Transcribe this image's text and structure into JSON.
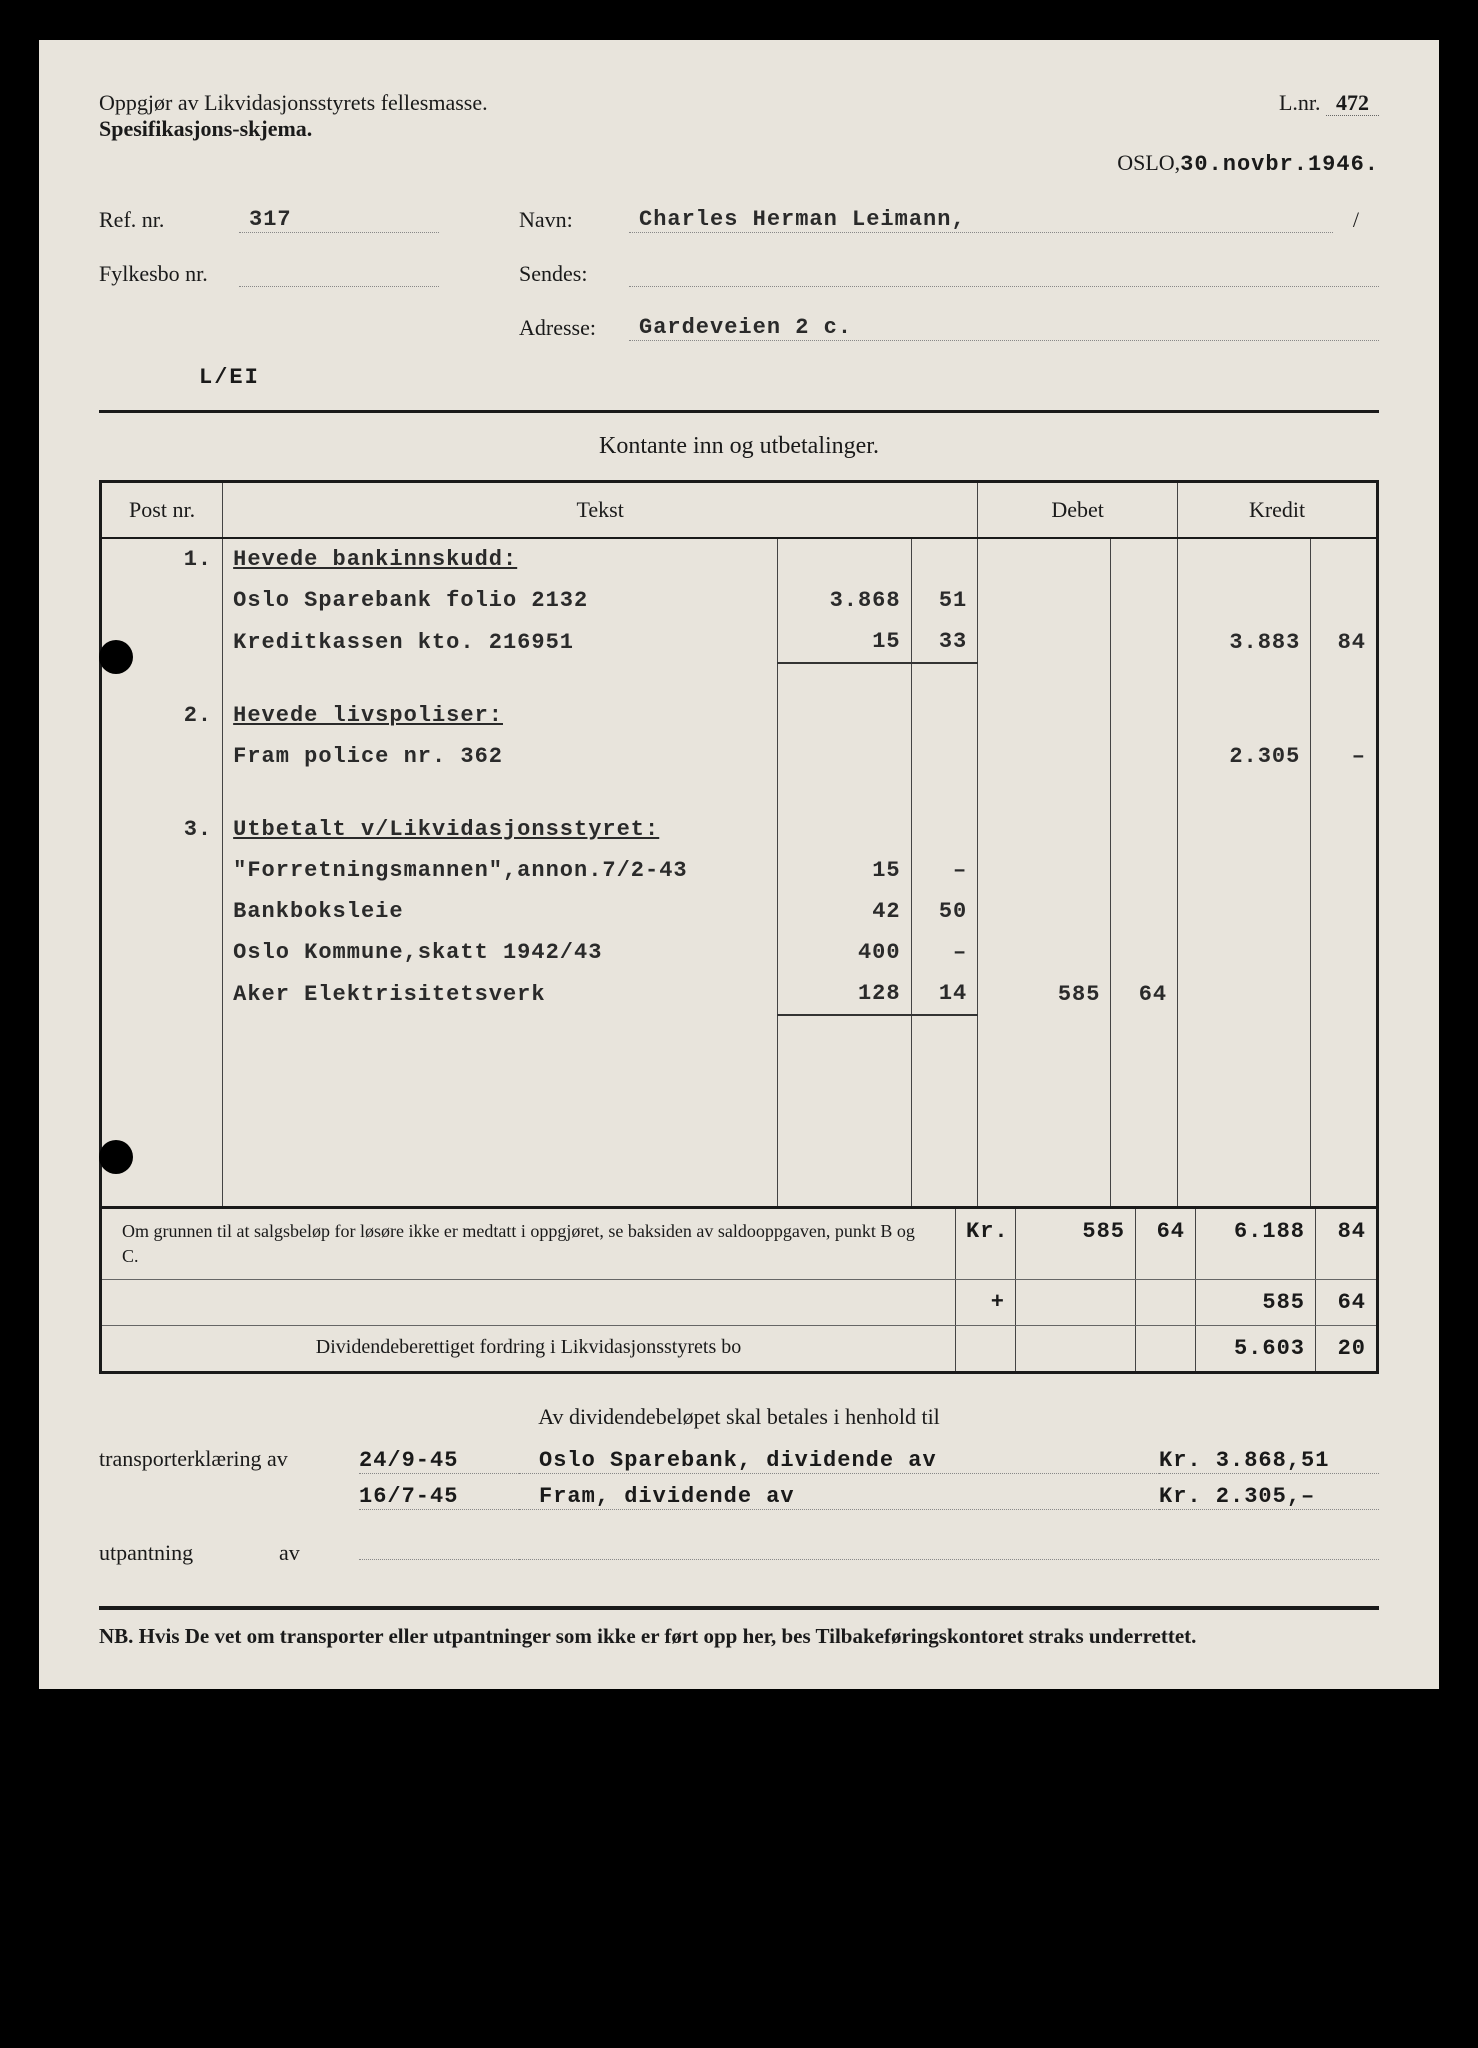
{
  "header": {
    "title1": "Oppgjør av Likvidasjonsstyrets fellesmasse.",
    "title2": "Spesifikasjons-skjema.",
    "lnr_label": "L.nr.",
    "lnr_value": "472",
    "place": "OSLO,",
    "date": "30.novbr.1946."
  },
  "info": {
    "ref_label": "Ref. nr.",
    "ref_value": "317",
    "navn_label": "Navn:",
    "navn_value": "Charles Herman Leimann,",
    "fylkesbo_label": "Fylkesbo nr.",
    "fylkesbo_value": "",
    "sendes_label": "Sendes:",
    "sendes_value": "",
    "adresse_label": "Adresse:",
    "adresse_value": "Gardeveien 2 c.",
    "code": "L/EI"
  },
  "section_title": "Kontante inn og utbetalinger.",
  "columns": {
    "post": "Post nr.",
    "tekst": "Tekst",
    "debet": "Debet",
    "kredit": "Kredit"
  },
  "rows": [
    {
      "post": "1.",
      "text": "Hevede bankinnskudd:",
      "heading": true
    },
    {
      "text": "Oslo Sparebank folio 2132",
      "a1": "3.868",
      "a1o": "51"
    },
    {
      "text": "Kreditkassen kto. 216951",
      "a1": "15",
      "a1o": "33",
      "kredit": "3.883",
      "kredito": "84",
      "sumline": true
    },
    {
      "spacer": true
    },
    {
      "post": "2.",
      "text": "Hevede livspoliser:",
      "heading": true
    },
    {
      "text": "Fram police nr. 362",
      "kredit": "2.305",
      "kredito": "–"
    },
    {
      "spacer": true
    },
    {
      "post": "3.",
      "text": "Utbetalt v/Likvidasjonsstyret:",
      "heading": true
    },
    {
      "text": "\"Forretningsmannen\",annon.7/2-43",
      "a1": "15",
      "a1o": "–"
    },
    {
      "text": "Bankboksleie",
      "a1": "42",
      "a1o": "50"
    },
    {
      "text": "Oslo Kommune,skatt 1942/43",
      "a1": "400",
      "a1o": "–"
    },
    {
      "text": "Aker Elektrisitetsverk",
      "a1": "128",
      "a1o": "14",
      "debet": "585",
      "debeto": "64",
      "sumline": true
    },
    {
      "spacer": true
    },
    {
      "spacer": true
    },
    {
      "spacer": true
    },
    {
      "spacer": true
    },
    {
      "spacer": true
    },
    {
      "spacer": true
    }
  ],
  "footer": {
    "note": "Om grunnen til at salgsbeløp for løsøre ikke er medtatt i oppgjøret, se baksiden av saldooppgaven, punkt B og C.",
    "kr": "Kr.",
    "plus": "+",
    "r1_debet": "585",
    "r1_debeto": "64",
    "r1_kredit": "6.188",
    "r1_kredito": "84",
    "r2_kredit": "585",
    "r2_kredito": "64",
    "divlabel": "Dividendeberettiget fordring i Likvidasjonsstyrets bo",
    "r3_kredit": "5.603",
    "r3_kredito": "20"
  },
  "dividend": {
    "title": "Av dividendebeløpet skal betales i henhold til",
    "transport_label": "transporterklæring av",
    "utpantning_label": "utpantning",
    "av": "av",
    "rows": [
      {
        "date": "24/9-45",
        "desc": "Oslo Sparebank, dividende av",
        "amt": "Kr. 3.868,51"
      },
      {
        "date": "16/7-45",
        "desc": "Fram, dividende av",
        "amt": "Kr. 2.305,–"
      }
    ]
  },
  "nb": "NB. Hvis De vet om transporter eller utpantninger som ikke er ført opp her, bes Tilbakeføringskontoret straks underrettet."
}
